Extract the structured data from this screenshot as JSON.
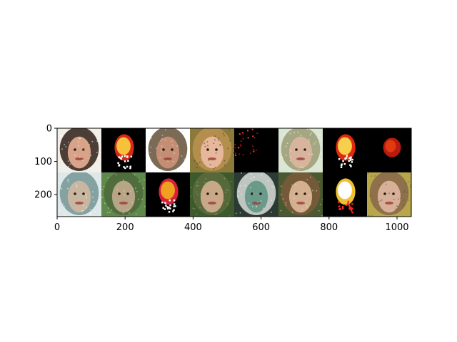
{
  "figure": {
    "image_grid": {
      "rows": 2,
      "cols": 8,
      "tiles": [
        {
          "row": 0,
          "col": 0,
          "subject": "face",
          "bg": "#f2efe8",
          "skin": "#d9a38a",
          "hair": "#3a2a22",
          "noise": "#ffffff"
        },
        {
          "row": 0,
          "col": 1,
          "subject": "mask",
          "bg": "#000000",
          "skin": "#f5c23a",
          "hair": "#d8281a",
          "noise": "#ffffff"
        },
        {
          "row": 0,
          "col": 2,
          "subject": "face",
          "bg": "#ffffff",
          "skin": "#c48e74",
          "hair": "#6d5a44",
          "noise": "#eaeaea"
        },
        {
          "row": 0,
          "col": 3,
          "subject": "face",
          "bg": "#8c7a3a",
          "skin": "#e6b79b",
          "hair": "#b89050",
          "noise": "#2d3a2a"
        },
        {
          "row": 0,
          "col": 4,
          "subject": "sparse",
          "bg": "#000000",
          "skin": "#2a0505",
          "hair": "#8a0f0f",
          "noise": "#ff3a3a"
        },
        {
          "row": 0,
          "col": 5,
          "subject": "face",
          "bg": "#dbe6d4",
          "skin": "#d8b49c",
          "hair": "#9ea07a",
          "noise": "#ffffff"
        },
        {
          "row": 0,
          "col": 6,
          "subject": "mask",
          "bg": "#000000",
          "skin": "#f7d04b",
          "hair": "#e02a10",
          "noise": "#ffffff"
        },
        {
          "row": 0,
          "col": 7,
          "subject": "blob",
          "bg": "#000000",
          "skin": "#e23a10",
          "hair": "#b81a10",
          "noise": "#ffb020"
        },
        {
          "row": 1,
          "col": 0,
          "subject": "face",
          "bg": "#dfe8e8",
          "skin": "#c9b6a0",
          "hair": "#7a9a9a",
          "noise": "#ffffff"
        },
        {
          "row": 1,
          "col": 1,
          "subject": "face",
          "bg": "#5f8a4c",
          "skin": "#b8a486",
          "hair": "#4f6a3c",
          "noise": "#dde4c0"
        },
        {
          "row": 1,
          "col": 2,
          "subject": "mask",
          "bg": "#000000",
          "skin": "#f0a020",
          "hair": "#d8203a",
          "noise": "#ffffff"
        },
        {
          "row": 1,
          "col": 3,
          "subject": "face",
          "bg": "#3c5a2c",
          "skin": "#c9a888",
          "hair": "#5a6a3c",
          "noise": "#9ab080"
        },
        {
          "row": 1,
          "col": 4,
          "subject": "face",
          "bg": "#2c3a34",
          "skin": "#6a9a8a",
          "hair": "#cfd6d0",
          "noise": "#ffffff"
        },
        {
          "row": 1,
          "col": 5,
          "subject": "face",
          "bg": "#4a5a30",
          "skin": "#d4b090",
          "hair": "#7a5a3c",
          "noise": "#e0e4c8"
        },
        {
          "row": 1,
          "col": 6,
          "subject": "mask",
          "bg": "#000000",
          "skin": "#ffffff",
          "hair": "#f0c030",
          "noise": "#ff2a2a"
        },
        {
          "row": 1,
          "col": 7,
          "subject": "face",
          "bg": "#b8a64a",
          "skin": "#d8b098",
          "hair": "#8a6a4a",
          "noise": "#4a5a3a"
        }
      ]
    },
    "axes": {
      "x_range": [
        0,
        1042
      ],
      "y_range": [
        0,
        266
      ],
      "y_inverted": true,
      "x_ticks": [
        {
          "value": 0,
          "label": "0"
        },
        {
          "value": 200,
          "label": "200"
        },
        {
          "value": 400,
          "label": "400"
        },
        {
          "value": 600,
          "label": "600"
        },
        {
          "value": 800,
          "label": "800"
        },
        {
          "value": 1000,
          "label": "1000"
        }
      ],
      "y_ticks": [
        {
          "value": 0,
          "label": "0"
        },
        {
          "value": 100,
          "label": "100"
        },
        {
          "value": 200,
          "label": "200"
        }
      ]
    }
  }
}
